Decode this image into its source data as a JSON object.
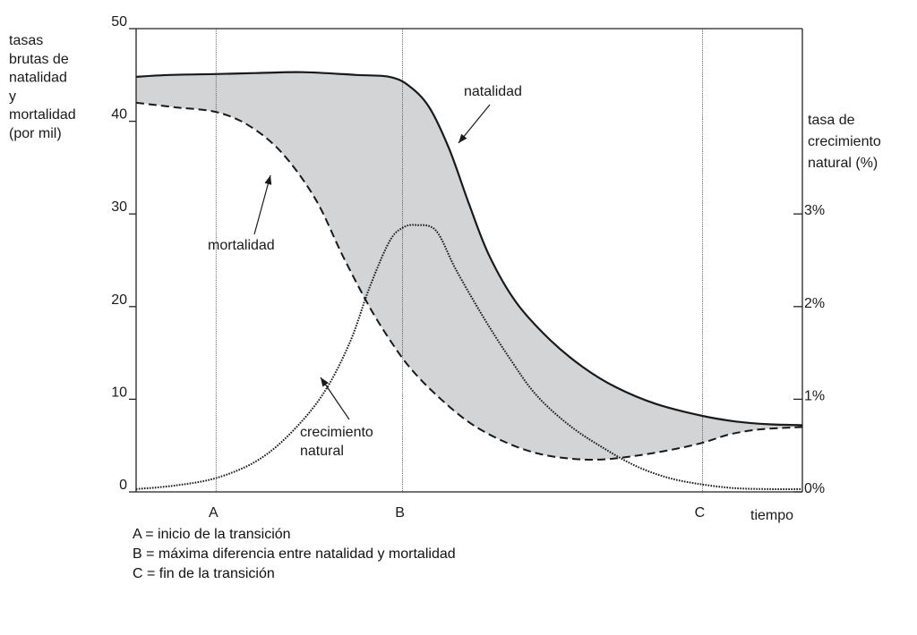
{
  "chart_data": {
    "type": "line",
    "left_axis_label": [
      "tasas",
      "brutas de",
      "natalidad",
      "y",
      "mortalidad",
      "(por mil)"
    ],
    "right_axis_label": [
      "tasa de",
      "crecimiento",
      "natural (%)"
    ],
    "x_label": "tiempo",
    "left_ticks": [
      "0",
      "10",
      "20",
      "30",
      "40",
      "50"
    ],
    "left_ylim": [
      0,
      50
    ],
    "right_ticks": [
      "0%",
      "1%",
      "2%",
      "3%"
    ],
    "right_ylim": [
      0,
      5
    ],
    "x_ticks": [
      {
        "label": "A",
        "x": 0.12
      },
      {
        "label": "B",
        "x": 0.4
      },
      {
        "label": "C",
        "x": 0.85
      }
    ],
    "xlim": [
      0,
      1
    ],
    "series": [
      {
        "name": "natalidad",
        "axis": "left",
        "style": "solid",
        "points": [
          [
            0,
            44.8
          ],
          [
            0.05,
            45
          ],
          [
            0.12,
            45.1
          ],
          [
            0.18,
            45.2
          ],
          [
            0.25,
            45.3
          ],
          [
            0.33,
            45
          ],
          [
            0.38,
            44.8
          ],
          [
            0.41,
            43.8
          ],
          [
            0.44,
            41.5
          ],
          [
            0.47,
            37
          ],
          [
            0.5,
            31
          ],
          [
            0.53,
            25.5
          ],
          [
            0.57,
            20.5
          ],
          [
            0.62,
            16.5
          ],
          [
            0.67,
            13.5
          ],
          [
            0.72,
            11.3
          ],
          [
            0.78,
            9.5
          ],
          [
            0.85,
            8.2
          ],
          [
            0.9,
            7.6
          ],
          [
            0.95,
            7.3
          ],
          [
            1,
            7.2
          ]
        ]
      },
      {
        "name": "mortalidad",
        "axis": "left",
        "style": "dashed",
        "points": [
          [
            0,
            42
          ],
          [
            0.06,
            41.5
          ],
          [
            0.12,
            41
          ],
          [
            0.17,
            39.5
          ],
          [
            0.22,
            36.5
          ],
          [
            0.27,
            31.5
          ],
          [
            0.31,
            25.5
          ],
          [
            0.35,
            20
          ],
          [
            0.38,
            16.5
          ],
          [
            0.41,
            13.5
          ],
          [
            0.45,
            10.5
          ],
          [
            0.5,
            7.5
          ],
          [
            0.55,
            5.5
          ],
          [
            0.6,
            4.2
          ],
          [
            0.65,
            3.6
          ],
          [
            0.7,
            3.5
          ],
          [
            0.75,
            3.9
          ],
          [
            0.8,
            4.5
          ],
          [
            0.85,
            5.3
          ],
          [
            0.89,
            6.2
          ],
          [
            0.93,
            6.7
          ],
          [
            0.97,
            6.9
          ],
          [
            1,
            7
          ]
        ]
      },
      {
        "name": "crecimiento natural",
        "axis": "right",
        "style": "dotted",
        "points": [
          [
            0,
            0.03
          ],
          [
            0.06,
            0.07
          ],
          [
            0.12,
            0.15
          ],
          [
            0.18,
            0.33
          ],
          [
            0.23,
            0.62
          ],
          [
            0.28,
            1.05
          ],
          [
            0.32,
            1.6
          ],
          [
            0.35,
            2.2
          ],
          [
            0.38,
            2.7
          ],
          [
            0.4,
            2.85
          ],
          [
            0.42,
            2.88
          ],
          [
            0.45,
            2.82
          ],
          [
            0.48,
            2.4
          ],
          [
            0.52,
            1.9
          ],
          [
            0.56,
            1.45
          ],
          [
            0.6,
            1.05
          ],
          [
            0.65,
            0.72
          ],
          [
            0.7,
            0.48
          ],
          [
            0.75,
            0.28
          ],
          [
            0.8,
            0.15
          ],
          [
            0.85,
            0.08
          ],
          [
            0.9,
            0.04
          ],
          [
            0.95,
            0.03
          ],
          [
            1,
            0.03
          ]
        ]
      }
    ],
    "annotations": [
      {
        "text": [
          "natalidad"
        ]
      },
      {
        "text": [
          "mortalidad"
        ]
      },
      {
        "text": [
          "crecimiento",
          "natural"
        ]
      }
    ],
    "fill_between": [
      "natalidad",
      "mortalidad"
    ],
    "fill_color": "#d3d4d6",
    "line_color": "#1a1a1a"
  },
  "legend": [
    "A = inicio de la transición",
    "B = máxima diferencia entre natalidad y mortalidad",
    "C = fin de la transición"
  ]
}
